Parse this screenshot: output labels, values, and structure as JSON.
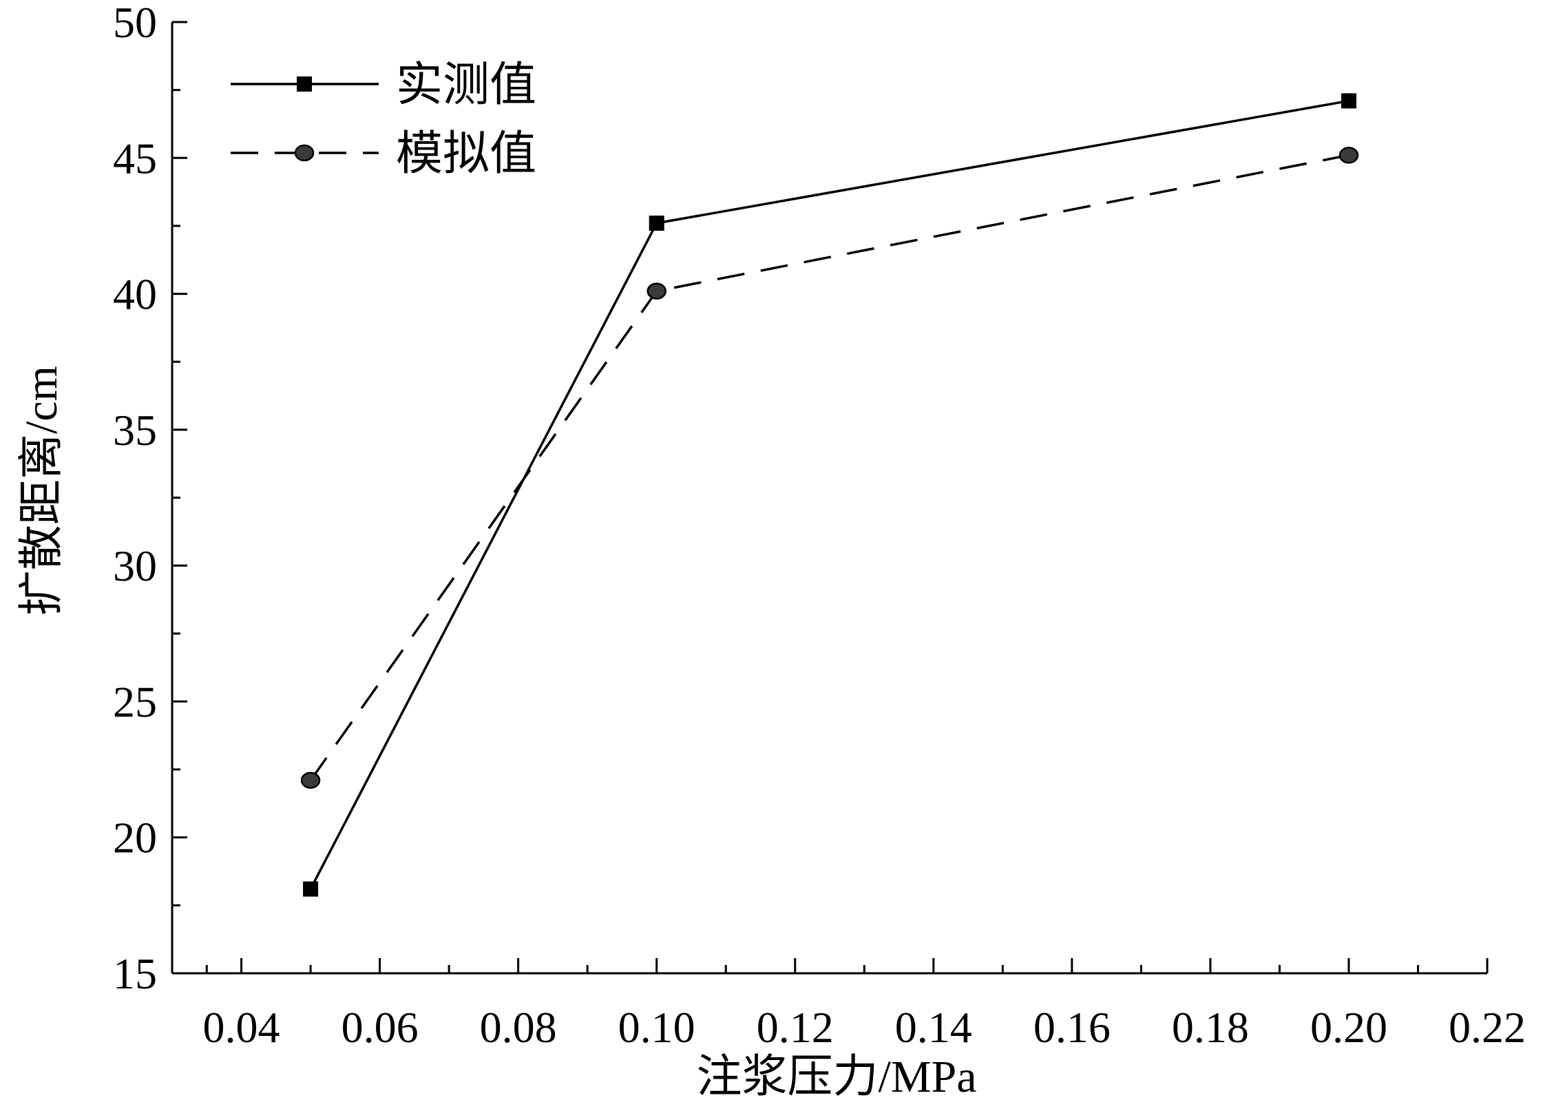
{
  "chart_data": {
    "type": "line",
    "xlabel": "注浆压力/MPa",
    "ylabel": "扩散距离/cm",
    "xlim": [
      0.03,
      0.22
    ],
    "ylim": [
      15,
      50
    ],
    "xticks": [
      0.04,
      0.06,
      0.08,
      0.1,
      0.12,
      0.14,
      0.16,
      0.18,
      0.2,
      0.22
    ],
    "xtick_labels": [
      "0.04",
      "0.06",
      "0.08",
      "0.10",
      "0.12",
      "0.14",
      "0.16",
      "0.18",
      "0.20",
      "0.22"
    ],
    "yticks": [
      15,
      20,
      25,
      30,
      35,
      40,
      45,
      50
    ],
    "ytick_labels": [
      "15",
      "20",
      "25",
      "30",
      "35",
      "40",
      "45",
      "50"
    ],
    "grid": false,
    "legend_position": "top-left",
    "series": [
      {
        "name": "实测值",
        "x": [
          0.05,
          0.1,
          0.2
        ],
        "y": [
          18.1,
          42.6,
          47.1
        ],
        "line": "solid",
        "marker": "square",
        "color": "#000000"
      },
      {
        "name": "模拟值",
        "x": [
          0.05,
          0.1,
          0.2
        ],
        "y": [
          22.1,
          40.1,
          45.1
        ],
        "line": "dashed",
        "marker": "circle",
        "color": "#000000",
        "marker_fill": "#3a3a3a"
      }
    ]
  }
}
